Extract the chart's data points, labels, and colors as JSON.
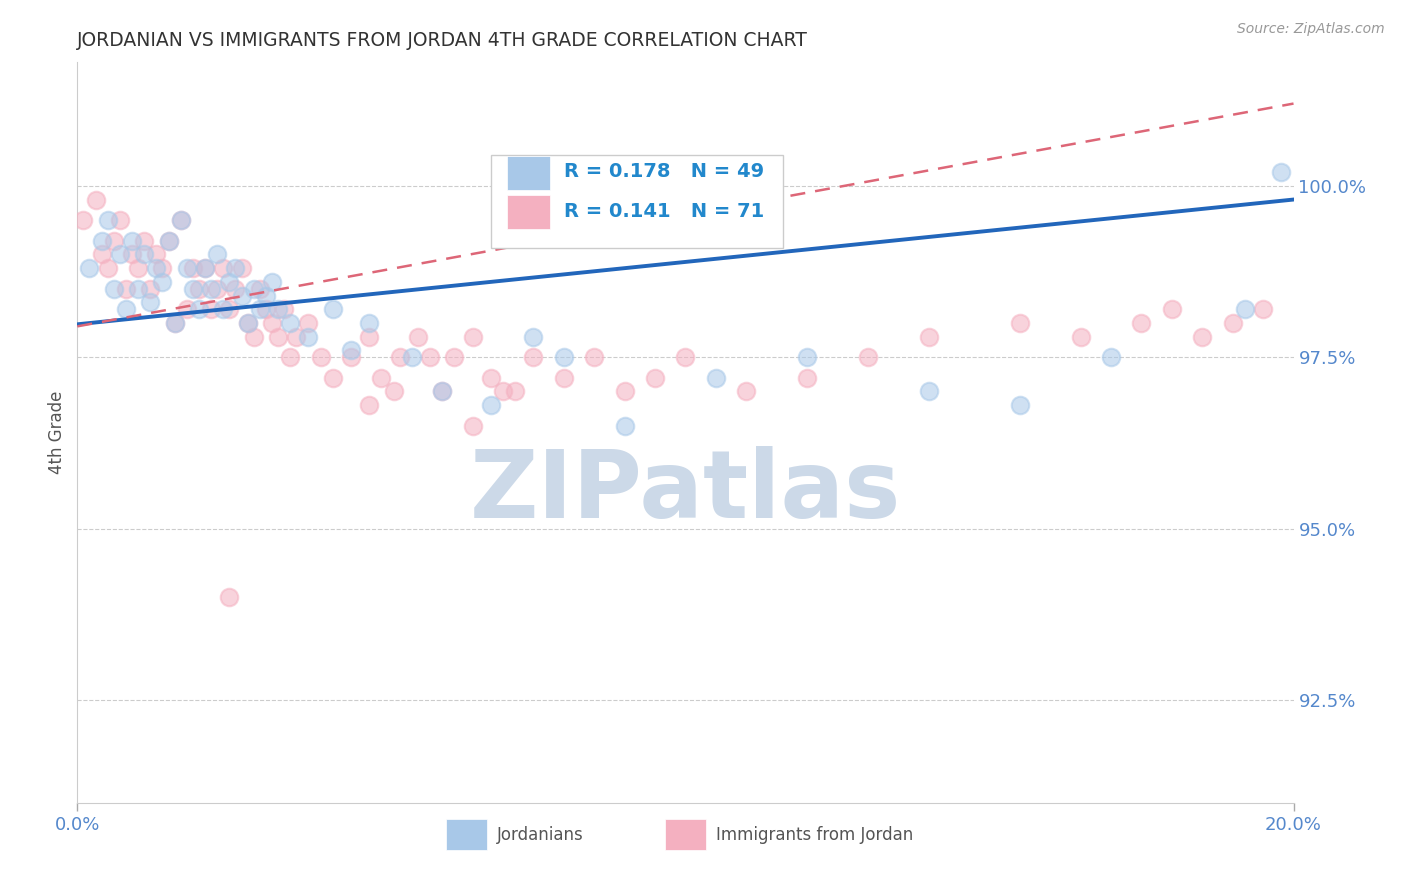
{
  "title": "JORDANIAN VS IMMIGRANTS FROM JORDAN 4TH GRADE CORRELATION CHART",
  "source_text": "Source: ZipAtlas.com",
  "ylabel": "4th Grade",
  "watermark": "ZIPatlas",
  "xmin": 0.0,
  "xmax": 20.0,
  "ymin": 91.0,
  "ymax": 101.8,
  "yticks": [
    92.5,
    95.0,
    97.5,
    100.0
  ],
  "ytick_labels": [
    "92.5%",
    "95.0%",
    "97.5%",
    "100.0%"
  ],
  "xtick_labels": [
    "0.0%",
    "20.0%"
  ],
  "blue_label": "Jordanians",
  "pink_label": "Immigrants from Jordan",
  "blue_R": 0.178,
  "blue_N": 49,
  "pink_R": 0.141,
  "pink_N": 71,
  "blue_color": "#a8c8e8",
  "pink_color": "#f4b0c0",
  "title_color": "#333333",
  "axis_label_color": "#555555",
  "tick_color": "#5588cc",
  "grid_color": "#cccccc",
  "source_color": "#999999",
  "watermark_color": "#ccd9e8",
  "legend_R_color": "#2288cc",
  "blue_line_color": "#2266bb",
  "pink_line_color": "#dd6677",
  "blue_scatter_x": [
    0.2,
    0.4,
    0.5,
    0.6,
    0.7,
    0.8,
    0.9,
    1.0,
    1.1,
    1.2,
    1.3,
    1.4,
    1.5,
    1.6,
    1.7,
    1.8,
    1.9,
    2.0,
    2.1,
    2.2,
    2.3,
    2.4,
    2.5,
    2.6,
    2.7,
    2.8,
    2.9,
    3.0,
    3.1,
    3.2,
    3.3,
    3.5,
    3.8,
    4.2,
    4.5,
    4.8,
    5.5,
    6.0,
    6.8,
    7.5,
    8.0,
    9.0,
    10.5,
    12.0,
    14.0,
    15.5,
    17.0,
    19.2,
    19.8
  ],
  "blue_scatter_y": [
    98.8,
    99.2,
    99.5,
    98.5,
    99.0,
    98.2,
    99.2,
    98.5,
    99.0,
    98.3,
    98.8,
    98.6,
    99.2,
    98.0,
    99.5,
    98.8,
    98.5,
    98.2,
    98.8,
    98.5,
    99.0,
    98.2,
    98.6,
    98.8,
    98.4,
    98.0,
    98.5,
    98.2,
    98.4,
    98.6,
    98.2,
    98.0,
    97.8,
    98.2,
    97.6,
    98.0,
    97.5,
    97.0,
    96.8,
    97.8,
    97.5,
    96.5,
    97.2,
    97.5,
    97.0,
    96.8,
    97.5,
    98.2,
    100.2
  ],
  "pink_scatter_x": [
    0.1,
    0.3,
    0.4,
    0.5,
    0.6,
    0.7,
    0.8,
    0.9,
    1.0,
    1.1,
    1.2,
    1.3,
    1.4,
    1.5,
    1.6,
    1.7,
    1.8,
    1.9,
    2.0,
    2.1,
    2.2,
    2.3,
    2.4,
    2.5,
    2.6,
    2.7,
    2.8,
    2.9,
    3.0,
    3.1,
    3.2,
    3.3,
    3.4,
    3.5,
    3.6,
    3.8,
    4.0,
    4.2,
    4.5,
    4.8,
    5.0,
    5.3,
    5.6,
    6.0,
    6.2,
    6.5,
    6.8,
    7.0,
    7.5,
    8.0,
    8.5,
    9.0,
    9.5,
    10.0,
    11.0,
    12.0,
    13.0,
    14.0,
    15.5,
    16.5,
    17.5,
    18.0,
    18.5,
    19.0,
    19.5,
    4.8,
    5.2,
    5.8,
    6.5,
    7.2,
    2.5
  ],
  "pink_scatter_y": [
    99.5,
    99.8,
    99.0,
    98.8,
    99.2,
    99.5,
    98.5,
    99.0,
    98.8,
    99.2,
    98.5,
    99.0,
    98.8,
    99.2,
    98.0,
    99.5,
    98.2,
    98.8,
    98.5,
    98.8,
    98.2,
    98.5,
    98.8,
    98.2,
    98.5,
    98.8,
    98.0,
    97.8,
    98.5,
    98.2,
    98.0,
    97.8,
    98.2,
    97.5,
    97.8,
    98.0,
    97.5,
    97.2,
    97.5,
    97.8,
    97.2,
    97.5,
    97.8,
    97.0,
    97.5,
    97.8,
    97.2,
    97.0,
    97.5,
    97.2,
    97.5,
    97.0,
    97.2,
    97.5,
    97.0,
    97.2,
    97.5,
    97.8,
    98.0,
    97.8,
    98.0,
    98.2,
    97.8,
    98.0,
    98.2,
    96.8,
    97.0,
    97.5,
    96.5,
    97.0,
    94.0
  ],
  "blue_trend_x0": 0.0,
  "blue_trend_x1": 20.0,
  "blue_trend_y0": 97.98,
  "blue_trend_y1": 99.8,
  "pink_trend_x0": 0.0,
  "pink_trend_x1": 20.0,
  "pink_trend_y0": 97.95,
  "pink_trend_y1": 101.2
}
